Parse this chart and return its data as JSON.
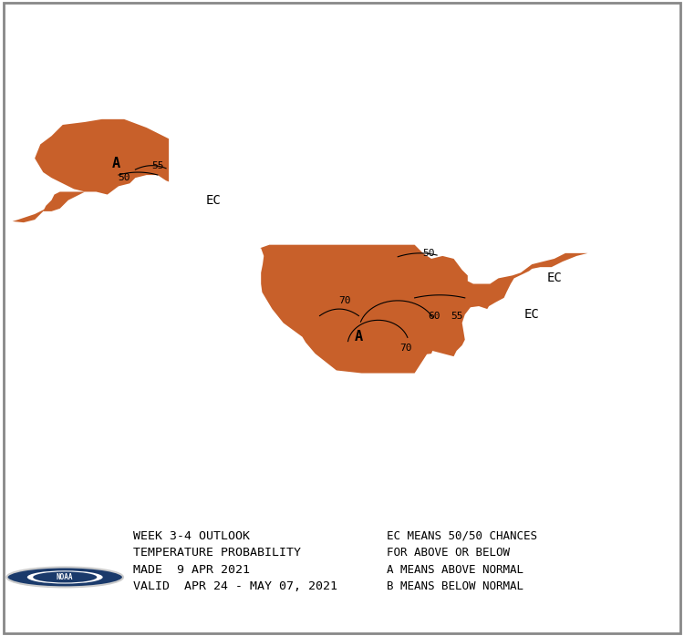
{
  "background_color": "#ffffff",
  "above_normal_color": "#C8602A",
  "border_color": "#888888",
  "text_color": "#000000",
  "left_text": "WEEK 3-4 OUTLOOK\nTEMPERATURE PROBABILITY\nMADE  9 APR 2021\nVALID  APR 24 - MAY 07, 2021",
  "right_text": "EC MEANS 50/50 CHANCES\nFOR ABOVE OR BELOW\nA MEANS ABOVE NORMAL\nB MEANS BELOW NORMAL",
  "noaa_circle_color": "#1a3a6b",
  "map_xlim": [
    -170,
    -50
  ],
  "map_ylim": [
    15,
    75
  ]
}
